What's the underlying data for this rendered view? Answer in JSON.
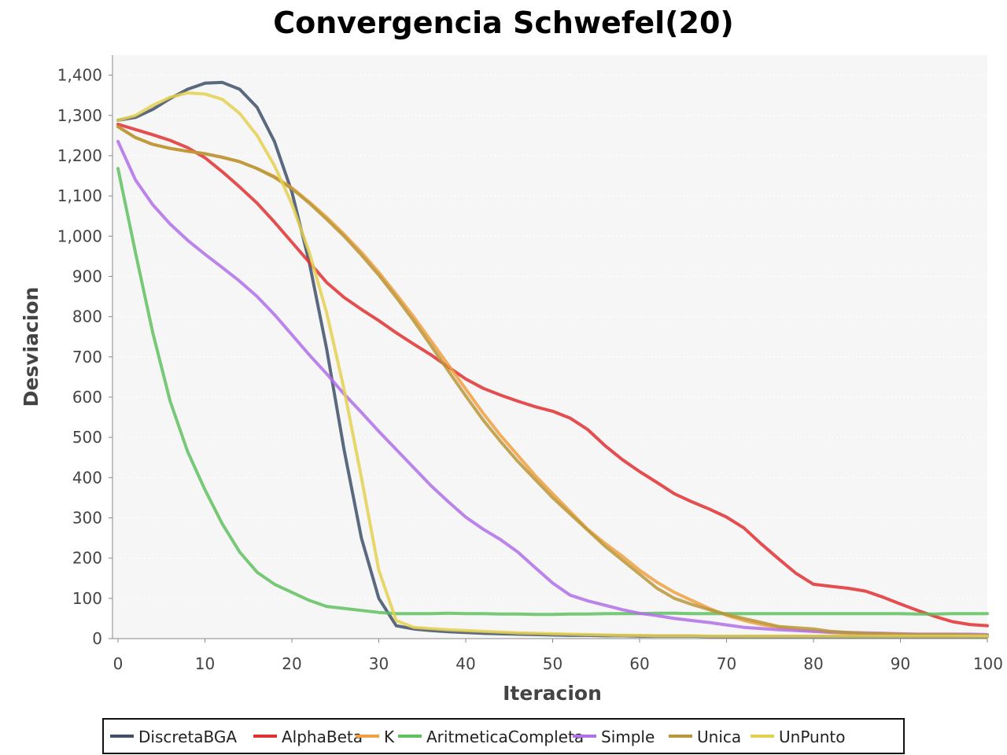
{
  "chart_data": {
    "type": "line",
    "title": "Convergencia Schwefel(20)",
    "xlabel": "Iteracion",
    "ylabel": "Desviacion",
    "xlim": [
      0,
      100
    ],
    "ylim": [
      0,
      1450
    ],
    "xticks": [
      0,
      10,
      20,
      30,
      40,
      50,
      60,
      70,
      80,
      90,
      100
    ],
    "xtick_labels": [
      "0",
      "10",
      "20",
      "30",
      "40",
      "50",
      "60",
      "70",
      "80",
      "90",
      "100"
    ],
    "yticks": [
      0,
      100,
      200,
      300,
      400,
      500,
      600,
      700,
      800,
      900,
      1000,
      1100,
      1200,
      1300,
      1400
    ],
    "ytick_labels": [
      "0",
      "100",
      "200",
      "300",
      "400",
      "500",
      "600",
      "700",
      "800",
      "900",
      "1,000",
      "1,100",
      "1,200",
      "1,300",
      "1,400"
    ],
    "grid": true,
    "legend_position": "bottom",
    "x": [
      0,
      2,
      4,
      6,
      8,
      10,
      12,
      14,
      16,
      18,
      20,
      22,
      24,
      26,
      28,
      30,
      32,
      34,
      36,
      38,
      40,
      42,
      44,
      46,
      48,
      50,
      52,
      54,
      56,
      58,
      60,
      62,
      64,
      66,
      68,
      70,
      72,
      74,
      76,
      78,
      80,
      82,
      84,
      86,
      88,
      90,
      92,
      94,
      96,
      98,
      100
    ],
    "series": [
      {
        "name": "DiscretaBGA",
        "color": "#3f5068",
        "values": [
          1288,
          1295,
          1315,
          1342,
          1365,
          1380,
          1382,
          1365,
          1320,
          1235,
          1110,
          935,
          720,
          470,
          250,
          100,
          32,
          24,
          20,
          17,
          15,
          13,
          12,
          11,
          10,
          9,
          8,
          8,
          7,
          7,
          6,
          6,
          6,
          6,
          5,
          5,
          5,
          5,
          5,
          5,
          5,
          5,
          5,
          5,
          5,
          5,
          5,
          5,
          5,
          5,
          5
        ]
      },
      {
        "name": "AlphaBeta",
        "color": "#e03030",
        "values": [
          1278,
          1265,
          1252,
          1238,
          1220,
          1195,
          1160,
          1122,
          1082,
          1035,
          985,
          935,
          885,
          848,
          818,
          790,
          760,
          732,
          705,
          675,
          645,
          622,
          605,
          590,
          576,
          565,
          548,
          520,
          480,
          445,
          415,
          388,
          360,
          340,
          322,
          302,
          275,
          235,
          198,
          162,
          135,
          130,
          125,
          118,
          103,
          86,
          70,
          55,
          42,
          35,
          32
        ]
      },
      {
        "name": "K",
        "color": "#f0a040",
        "values": [
          1272,
          1245,
          1228,
          1218,
          1211,
          1205,
          1196,
          1185,
          1168,
          1148,
          1120,
          1085,
          1047,
          1005,
          960,
          910,
          856,
          800,
          740,
          680,
          620,
          560,
          505,
          455,
          405,
          360,
          316,
          272,
          237,
          205,
          170,
          140,
          115,
          95,
          75,
          58,
          45,
          35,
          28,
          22,
          18,
          15,
          13,
          12,
          11,
          11,
          10,
          10,
          10,
          9,
          8
        ]
      },
      {
        "name": "AritmeticaCompleta",
        "color": "#60c060",
        "values": [
          1168,
          960,
          760,
          590,
          465,
          370,
          285,
          215,
          165,
          135,
          115,
          95,
          80,
          75,
          70,
          65,
          62,
          62,
          62,
          63,
          62,
          62,
          61,
          61,
          60,
          60,
          61,
          61,
          62,
          62,
          62,
          63,
          63,
          62,
          62,
          62,
          62,
          62,
          62,
          62,
          62,
          62,
          62,
          62,
          62,
          62,
          61,
          61,
          62,
          62,
          62
        ]
      },
      {
        "name": "Simple",
        "color": "#b070e8",
        "values": [
          1235,
          1140,
          1078,
          1030,
          990,
          955,
          922,
          888,
          850,
          805,
          755,
          705,
          658,
          608,
          562,
          515,
          470,
          425,
          380,
          340,
          302,
          272,
          246,
          215,
          176,
          138,
          108,
          94,
          83,
          72,
          63,
          57,
          50,
          45,
          40,
          34,
          28,
          25,
          22,
          20,
          18,
          16,
          15,
          14,
          13,
          12,
          11,
          11,
          11,
          11,
          10
        ]
      },
      {
        "name": "Unica",
        "color": "#b8963a",
        "values": [
          1272,
          1245,
          1228,
          1218,
          1211,
          1205,
          1196,
          1185,
          1168,
          1146,
          1118,
          1082,
          1042,
          1000,
          953,
          903,
          848,
          790,
          728,
          665,
          603,
          543,
          490,
          440,
          395,
          350,
          310,
          270,
          230,
          195,
          160,
          125,
          100,
          85,
          72,
          60,
          50,
          40,
          30,
          27,
          24,
          18,
          15,
          13,
          12,
          11,
          10,
          10,
          10,
          9,
          8
        ]
      },
      {
        "name": "UnPunto",
        "color": "#e4d050",
        "values": [
          1288,
          1300,
          1325,
          1345,
          1356,
          1353,
          1340,
          1305,
          1250,
          1175,
          1080,
          960,
          810,
          620,
          400,
          170,
          45,
          28,
          25,
          22,
          20,
          18,
          16,
          14,
          13,
          12,
          11,
          10,
          9,
          8,
          8,
          7,
          7,
          7,
          6,
          6,
          6,
          6,
          6,
          6,
          6,
          6,
          6,
          6,
          6,
          6,
          6,
          6,
          6,
          6,
          6
        ]
      }
    ]
  }
}
